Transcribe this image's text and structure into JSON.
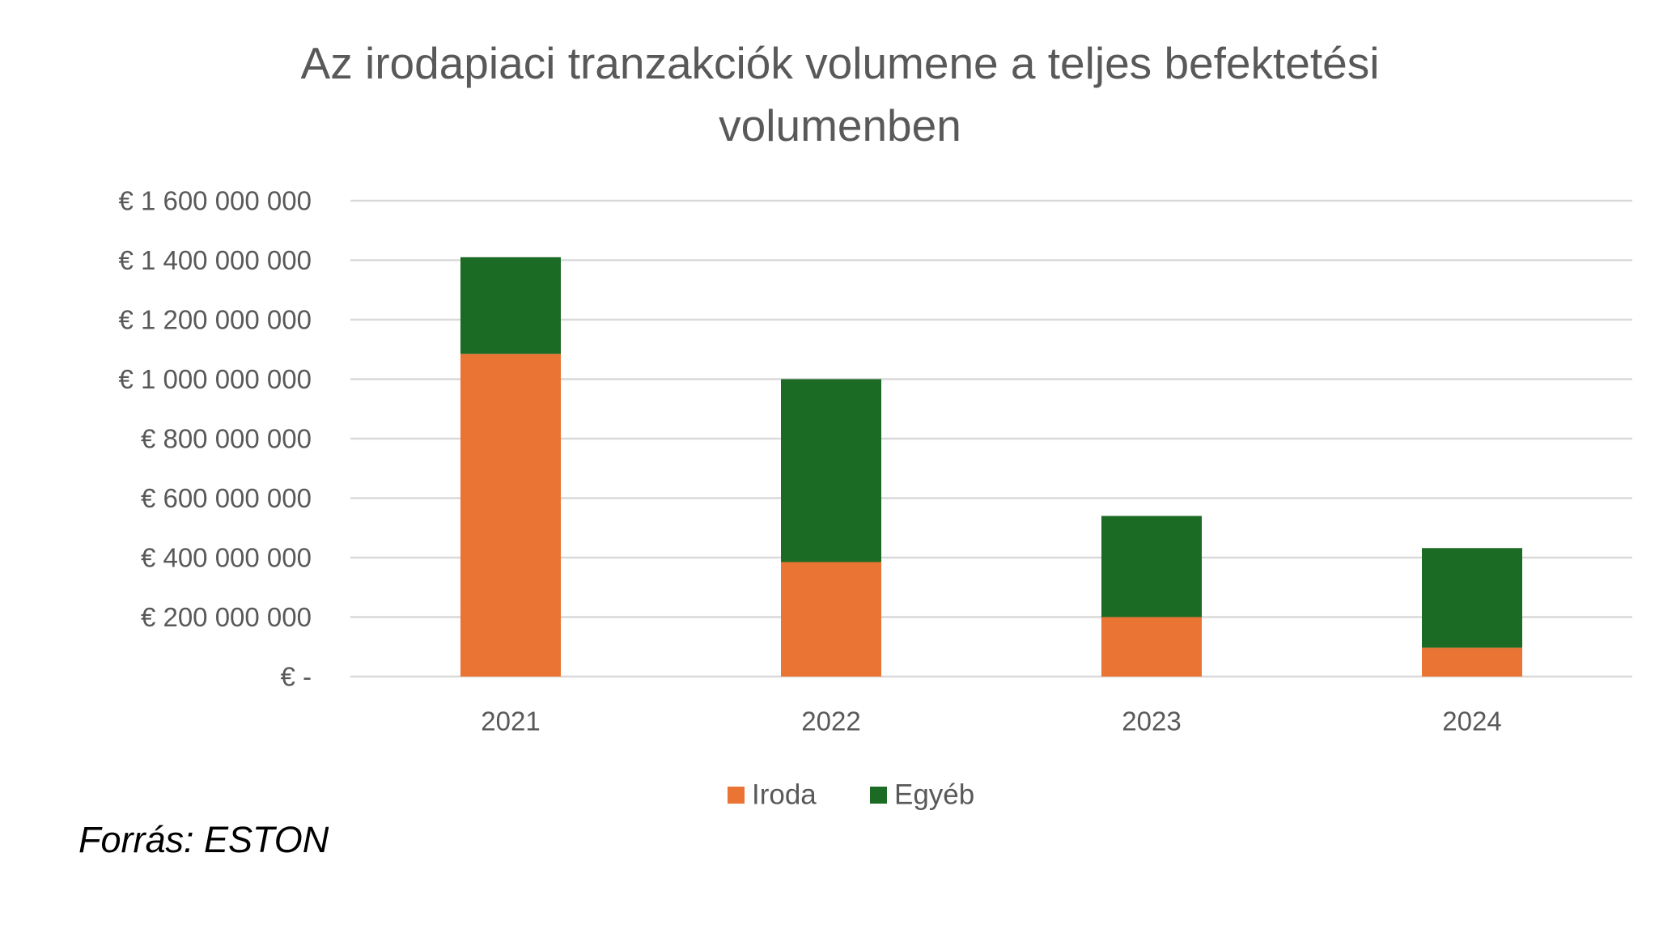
{
  "chart_data": {
    "type": "bar",
    "stacked": true,
    "title_lines": [
      "Az irodapiaci tranzakciók volumene a teljes befektetési",
      "volumenben"
    ],
    "categories": [
      "2021",
      "2022",
      "2023",
      "2024"
    ],
    "series": [
      {
        "name": "Iroda",
        "color": "#ea7434",
        "values": [
          1085000000,
          385000000,
          200000000,
          97000000
        ]
      },
      {
        "name": "Egyéb",
        "color": "#1b6b24",
        "values": [
          325000000,
          615000000,
          340000000,
          335000000
        ]
      }
    ],
    "ylim": [
      0,
      1600000000
    ],
    "yticks": [
      {
        "value": 0,
        "label": "€ -"
      },
      {
        "value": 200000000,
        "label": "€ 200 000 000"
      },
      {
        "value": 400000000,
        "label": "€ 400 000 000"
      },
      {
        "value": 600000000,
        "label": "€ 600 000 000"
      },
      {
        "value": 800000000,
        "label": "€ 800 000 000"
      },
      {
        "value": 1000000000,
        "label": "€ 1 000 000 000"
      },
      {
        "value": 1200000000,
        "label": "€ 1 200 000 000"
      },
      {
        "value": 1400000000,
        "label": "€ 1 400 000 000"
      },
      {
        "value": 1600000000,
        "label": "€ 1 600 000 000"
      }
    ],
    "grid": true,
    "gridline_color": "#d9d9d9",
    "legend_position": "bottom"
  },
  "source_note": "Forrás: ESTON"
}
